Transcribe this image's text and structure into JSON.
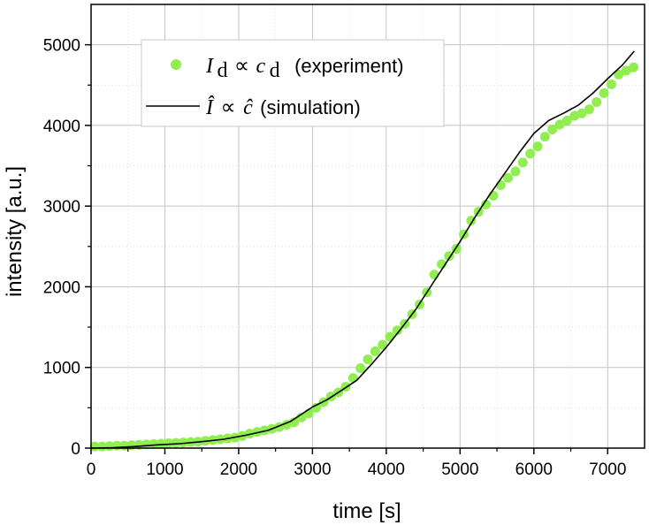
{
  "chart_data": {
    "type": "scatter",
    "xlabel": "time [s]",
    "ylabel": "intensity [a.u.]",
    "xlim": [
      0,
      7500
    ],
    "ylim": [
      0,
      5500
    ],
    "xticks": [
      0,
      1000,
      2000,
      3000,
      4000,
      5000,
      6000,
      7000
    ],
    "yticks": [
      0,
      1000,
      2000,
      3000,
      4000,
      5000
    ],
    "grid": true,
    "legend_position": "top-left",
    "colors": {
      "experiment": "#90ee50",
      "simulation": "#000000"
    },
    "legend": [
      {
        "symbol": "I",
        "subscript": "d",
        "relation": "∝",
        "symbol2": "c",
        "subscript2": "d",
        "text": "(experiment)"
      },
      {
        "symbol": "Î",
        "relation": "∝",
        "symbol2": "ĉ",
        "text": "(simulation)"
      }
    ],
    "series": [
      {
        "kind": "scatter",
        "x": [
          50,
          150,
          250,
          350,
          450,
          550,
          650,
          750,
          850,
          950,
          1050,
          1150,
          1250,
          1350,
          1450,
          1550,
          1650,
          1750,
          1850,
          1950,
          2050,
          2150,
          2250,
          2350,
          2450,
          2550,
          2650,
          2750,
          2850,
          2950,
          3050,
          3150,
          3250,
          3350,
          3450,
          3550,
          3650,
          3750,
          3850,
          3950,
          4050,
          4150,
          4250,
          4350,
          4450,
          4550,
          4650,
          4750,
          4850,
          4950,
          5050,
          5150,
          5250,
          5350,
          5450,
          5550,
          5650,
          5750,
          5850,
          5950,
          6050,
          6150,
          6250,
          6350,
          6450,
          6550,
          6650,
          6750,
          6850,
          6950,
          7050,
          7150,
          7250,
          7350
        ],
        "y": [
          20,
          20,
          25,
          30,
          30,
          35,
          40,
          45,
          50,
          55,
          60,
          65,
          70,
          75,
          80,
          90,
          100,
          110,
          120,
          130,
          150,
          180,
          200,
          220,
          240,
          260,
          290,
          320,
          380,
          430,
          500,
          570,
          640,
          690,
          760,
          870,
          990,
          1100,
          1200,
          1280,
          1380,
          1460,
          1540,
          1660,
          1780,
          1930,
          2150,
          2280,
          2380,
          2470,
          2650,
          2820,
          2930,
          3020,
          3130,
          3260,
          3350,
          3430,
          3540,
          3650,
          3740,
          3860,
          3950,
          4010,
          4060,
          4120,
          4150,
          4200,
          4290,
          4400,
          4510,
          4630,
          4680,
          4720
        ]
      },
      {
        "kind": "line",
        "x": [
          0,
          300,
          600,
          900,
          1200,
          1500,
          1800,
          2100,
          2400,
          2700,
          3000,
          3200,
          3400,
          3600,
          3800,
          4000,
          4200,
          4400,
          4600,
          4800,
          5000,
          5200,
          5400,
          5600,
          5800,
          6000,
          6200,
          6400,
          6600,
          6800,
          7000,
          7200,
          7360
        ],
        "y": [
          0,
          5,
          20,
          40,
          55,
          80,
          110,
          160,
          220,
          330,
          510,
          600,
          720,
          840,
          1040,
          1250,
          1480,
          1720,
          2000,
          2280,
          2560,
          2860,
          3140,
          3400,
          3660,
          3900,
          4060,
          4150,
          4250,
          4400,
          4580,
          4750,
          4920
        ]
      }
    ]
  }
}
